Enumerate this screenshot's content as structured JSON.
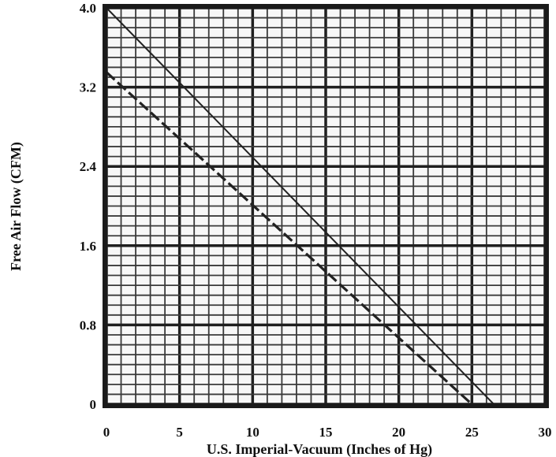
{
  "chart_data": {
    "type": "line",
    "title": "",
    "xlabel": "U.S. Imperial-Vacuum (Inches of Hg)",
    "ylabel": "Free Air Flow (CFM)",
    "xlim": [
      0,
      30
    ],
    "ylim": [
      0,
      4.0
    ],
    "x_ticks": [
      "0",
      "5",
      "10",
      "15",
      "20",
      "25",
      "30"
    ],
    "y_ticks": [
      "0",
      "0.8",
      "1.6",
      "2.4",
      "3.2",
      "4.0"
    ],
    "grid": true,
    "series": [
      {
        "style": "solid",
        "x": [
          0,
          26.5
        ],
        "y": [
          4.0,
          0
        ]
      },
      {
        "style": "dashed",
        "x": [
          0,
          25.0
        ],
        "y": [
          3.35,
          0
        ]
      }
    ]
  }
}
